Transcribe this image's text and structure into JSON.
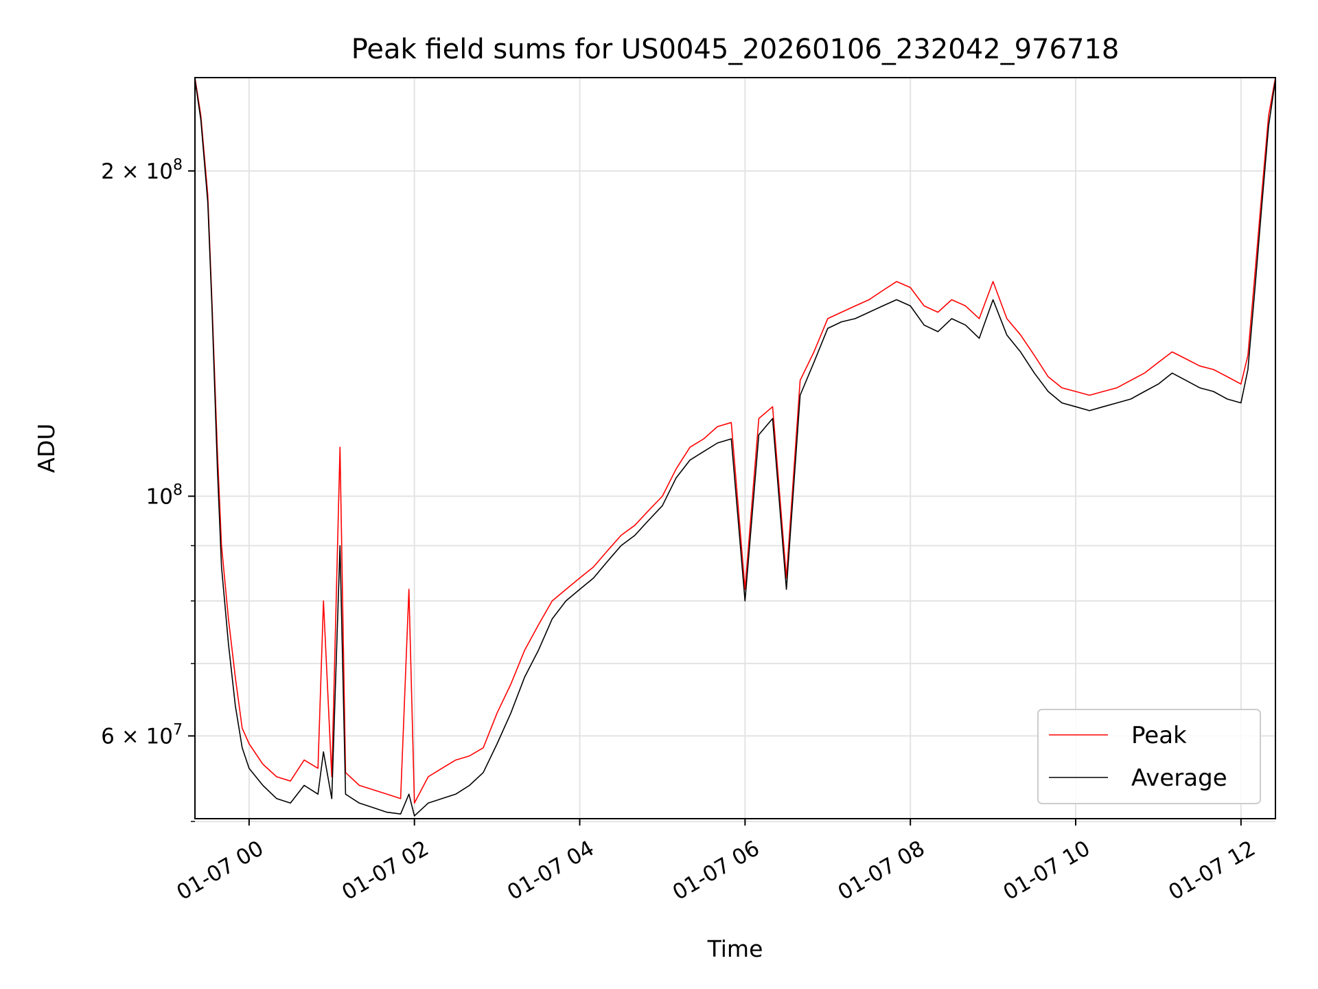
{
  "chart_data": {
    "type": "line",
    "title": "Peak field sums for US0045_20260106_232042_976718",
    "xlabel": "Time",
    "ylabel": "ADU",
    "x_type": "datetime",
    "xlim": [
      "2026-01-06T23:20:42",
      "2026-01-07T12:25:00"
    ],
    "ylim": [
      50300000,
      244000000
    ],
    "y_scale": "log",
    "grid": true,
    "legend_position": "lower-right",
    "x_ticks": [
      {
        "value": "2026-01-07T00:00:00",
        "label": "01-07 00"
      },
      {
        "value": "2026-01-07T02:00:00",
        "label": "01-07 02"
      },
      {
        "value": "2026-01-07T04:00:00",
        "label": "01-07 04"
      },
      {
        "value": "2026-01-07T06:00:00",
        "label": "01-07 06"
      },
      {
        "value": "2026-01-07T08:00:00",
        "label": "01-07 08"
      },
      {
        "value": "2026-01-07T10:00:00",
        "label": "01-07 10"
      },
      {
        "value": "2026-01-07T12:00:00",
        "label": "01-07 12"
      }
    ],
    "y_major_ticks": [
      {
        "value": 60000000,
        "mantissa": "6",
        "exponent": "7"
      },
      {
        "value": 100000000,
        "mantissa": "",
        "exponent": "8"
      },
      {
        "value": 200000000,
        "mantissa": "2",
        "exponent": "8"
      }
    ],
    "y_minor_ticks": [
      50000000,
      70000000,
      80000000,
      90000000
    ],
    "tick_base": "10",
    "tick_times": "×",
    "series": [
      {
        "name": "Peak",
        "color": "#ff0000",
        "x": [
          "2026-01-06T23:20:42",
          "2026-01-06T23:25:00",
          "2026-01-06T23:30:00",
          "2026-01-06T23:33:00",
          "2026-01-06T23:37:00",
          "2026-01-06T23:40:00",
          "2026-01-06T23:45:00",
          "2026-01-06T23:50:00",
          "2026-01-06T23:55:00",
          "2026-01-07T00:00:00",
          "2026-01-07T00:10:00",
          "2026-01-07T00:20:00",
          "2026-01-07T00:30:00",
          "2026-01-07T00:40:00",
          "2026-01-07T00:50:00",
          "2026-01-07T00:54:00",
          "2026-01-07T01:00:00",
          "2026-01-07T01:06:00",
          "2026-01-07T01:10:00",
          "2026-01-07T01:20:00",
          "2026-01-07T01:30:00",
          "2026-01-07T01:40:00",
          "2026-01-07T01:50:00",
          "2026-01-07T01:56:00",
          "2026-01-07T02:00:00",
          "2026-01-07T02:10:00",
          "2026-01-07T02:20:00",
          "2026-01-07T02:30:00",
          "2026-01-07T02:40:00",
          "2026-01-07T02:50:00",
          "2026-01-07T03:00:00",
          "2026-01-07T03:10:00",
          "2026-01-07T03:20:00",
          "2026-01-07T03:30:00",
          "2026-01-07T03:40:00",
          "2026-01-07T03:50:00",
          "2026-01-07T04:00:00",
          "2026-01-07T04:10:00",
          "2026-01-07T04:20:00",
          "2026-01-07T04:30:00",
          "2026-01-07T04:40:00",
          "2026-01-07T04:50:00",
          "2026-01-07T05:00:00",
          "2026-01-07T05:10:00",
          "2026-01-07T05:20:00",
          "2026-01-07T05:30:00",
          "2026-01-07T05:40:00",
          "2026-01-07T05:50:00",
          "2026-01-07T06:00:00",
          "2026-01-07T06:10:00",
          "2026-01-07T06:20:00",
          "2026-01-07T06:30:00",
          "2026-01-07T06:40:00",
          "2026-01-07T06:50:00",
          "2026-01-07T07:00:00",
          "2026-01-07T07:10:00",
          "2026-01-07T07:20:00",
          "2026-01-07T07:30:00",
          "2026-01-07T07:40:00",
          "2026-01-07T07:50:00",
          "2026-01-07T08:00:00",
          "2026-01-07T08:10:00",
          "2026-01-07T08:20:00",
          "2026-01-07T08:30:00",
          "2026-01-07T08:40:00",
          "2026-01-07T08:50:00",
          "2026-01-07T09:00:00",
          "2026-01-07T09:10:00",
          "2026-01-07T09:20:00",
          "2026-01-07T09:30:00",
          "2026-01-07T09:40:00",
          "2026-01-07T09:50:00",
          "2026-01-07T10:00:00",
          "2026-01-07T10:10:00",
          "2026-01-07T10:20:00",
          "2026-01-07T10:30:00",
          "2026-01-07T10:40:00",
          "2026-01-07T10:50:00",
          "2026-01-07T11:00:00",
          "2026-01-07T11:10:00",
          "2026-01-07T11:20:00",
          "2026-01-07T11:30:00",
          "2026-01-07T11:40:00",
          "2026-01-07T11:50:00",
          "2026-01-07T12:00:00",
          "2026-01-07T12:05:00",
          "2026-01-07T12:10:00",
          "2026-01-07T12:15:00",
          "2026-01-07T12:20:00",
          "2026-01-07T12:25:00"
        ],
        "values": [
          244000000,
          225000000,
          190000000,
          152000000,
          110000000,
          90000000,
          77000000,
          68000000,
          61000000,
          59000000,
          56500000,
          55000000,
          54500000,
          57000000,
          56000000,
          80000000,
          55000000,
          111000000,
          55500000,
          54000000,
          53500000,
          53000000,
          52500000,
          82000000,
          52000000,
          55000000,
          56000000,
          57000000,
          57500000,
          58500000,
          63000000,
          67000000,
          72000000,
          76000000,
          80000000,
          82000000,
          84000000,
          86000000,
          89000000,
          92000000,
          94000000,
          97000000,
          100000000,
          106000000,
          111000000,
          113000000,
          116000000,
          117000000,
          82000000,
          118000000,
          121000000,
          84000000,
          128000000,
          136000000,
          146000000,
          148000000,
          150000000,
          152000000,
          155000000,
          158000000,
          156000000,
          150000000,
          148000000,
          152000000,
          150000000,
          146000000,
          158000000,
          146000000,
          141000000,
          135000000,
          129000000,
          126000000,
          125000000,
          124000000,
          125000000,
          126000000,
          128000000,
          130000000,
          133000000,
          136000000,
          134000000,
          132000000,
          131000000,
          129000000,
          127000000,
          135000000,
          160000000,
          190000000,
          225000000,
          244000000
        ]
      },
      {
        "name": "Average",
        "color": "#000000",
        "x": [
          "2026-01-06T23:20:42",
          "2026-01-06T23:25:00",
          "2026-01-06T23:30:00",
          "2026-01-06T23:33:00",
          "2026-01-06T23:37:00",
          "2026-01-06T23:40:00",
          "2026-01-06T23:45:00",
          "2026-01-06T23:50:00",
          "2026-01-06T23:55:00",
          "2026-01-07T00:00:00",
          "2026-01-07T00:10:00",
          "2026-01-07T00:20:00",
          "2026-01-07T00:30:00",
          "2026-01-07T00:40:00",
          "2026-01-07T00:50:00",
          "2026-01-07T00:54:00",
          "2026-01-07T01:00:00",
          "2026-01-07T01:06:00",
          "2026-01-07T01:10:00",
          "2026-01-07T01:20:00",
          "2026-01-07T01:30:00",
          "2026-01-07T01:40:00",
          "2026-01-07T01:50:00",
          "2026-01-07T01:56:00",
          "2026-01-07T02:00:00",
          "2026-01-07T02:10:00",
          "2026-01-07T02:20:00",
          "2026-01-07T02:30:00",
          "2026-01-07T02:40:00",
          "2026-01-07T02:50:00",
          "2026-01-07T03:00:00",
          "2026-01-07T03:10:00",
          "2026-01-07T03:20:00",
          "2026-01-07T03:30:00",
          "2026-01-07T03:40:00",
          "2026-01-07T03:50:00",
          "2026-01-07T04:00:00",
          "2026-01-07T04:10:00",
          "2026-01-07T04:20:00",
          "2026-01-07T04:30:00",
          "2026-01-07T04:40:00",
          "2026-01-07T04:50:00",
          "2026-01-07T05:00:00",
          "2026-01-07T05:10:00",
          "2026-01-07T05:20:00",
          "2026-01-07T05:30:00",
          "2026-01-07T05:40:00",
          "2026-01-07T05:50:00",
          "2026-01-07T06:00:00",
          "2026-01-07T06:10:00",
          "2026-01-07T06:20:00",
          "2026-01-07T06:30:00",
          "2026-01-07T06:40:00",
          "2026-01-07T06:50:00",
          "2026-01-07T07:00:00",
          "2026-01-07T07:10:00",
          "2026-01-07T07:20:00",
          "2026-01-07T07:30:00",
          "2026-01-07T07:40:00",
          "2026-01-07T07:50:00",
          "2026-01-07T08:00:00",
          "2026-01-07T08:10:00",
          "2026-01-07T08:20:00",
          "2026-01-07T08:30:00",
          "2026-01-07T08:40:00",
          "2026-01-07T08:50:00",
          "2026-01-07T09:00:00",
          "2026-01-07T09:10:00",
          "2026-01-07T09:20:00",
          "2026-01-07T09:30:00",
          "2026-01-07T09:40:00",
          "2026-01-07T09:50:00",
          "2026-01-07T10:00:00",
          "2026-01-07T10:10:00",
          "2026-01-07T10:20:00",
          "2026-01-07T10:30:00",
          "2026-01-07T10:40:00",
          "2026-01-07T10:50:00",
          "2026-01-07T11:00:00",
          "2026-01-07T11:10:00",
          "2026-01-07T11:20:00",
          "2026-01-07T11:30:00",
          "2026-01-07T11:40:00",
          "2026-01-07T11:50:00",
          "2026-01-07T12:00:00",
          "2026-01-07T12:05:00",
          "2026-01-07T12:10:00",
          "2026-01-07T12:15:00",
          "2026-01-07T12:20:00",
          "2026-01-07T12:25:00"
        ],
        "values": [
          243000000,
          223000000,
          187000000,
          150000000,
          106000000,
          86000000,
          73000000,
          64000000,
          58500000,
          56000000,
          54000000,
          52500000,
          52000000,
          54000000,
          53000000,
          58000000,
          52500000,
          90000000,
          53000000,
          52000000,
          51500000,
          51000000,
          50800000,
          53000000,
          50600000,
          52000000,
          52500000,
          53000000,
          54000000,
          55500000,
          59000000,
          63000000,
          68000000,
          72000000,
          77000000,
          80000000,
          82000000,
          84000000,
          87000000,
          90000000,
          92000000,
          95000000,
          98000000,
          104000000,
          108000000,
          110000000,
          112000000,
          113000000,
          80000000,
          114000000,
          118000000,
          82000000,
          124000000,
          133000000,
          143000000,
          145000000,
          146000000,
          148000000,
          150000000,
          152000000,
          150000000,
          144000000,
          142000000,
          146000000,
          144000000,
          140000000,
          152000000,
          141000000,
          136000000,
          130000000,
          125000000,
          122000000,
          121000000,
          120000000,
          121000000,
          122000000,
          123000000,
          125000000,
          127000000,
          130000000,
          128000000,
          126000000,
          125000000,
          123000000,
          122000000,
          131000000,
          155000000,
          185000000,
          220000000,
          243000000
        ]
      }
    ]
  }
}
